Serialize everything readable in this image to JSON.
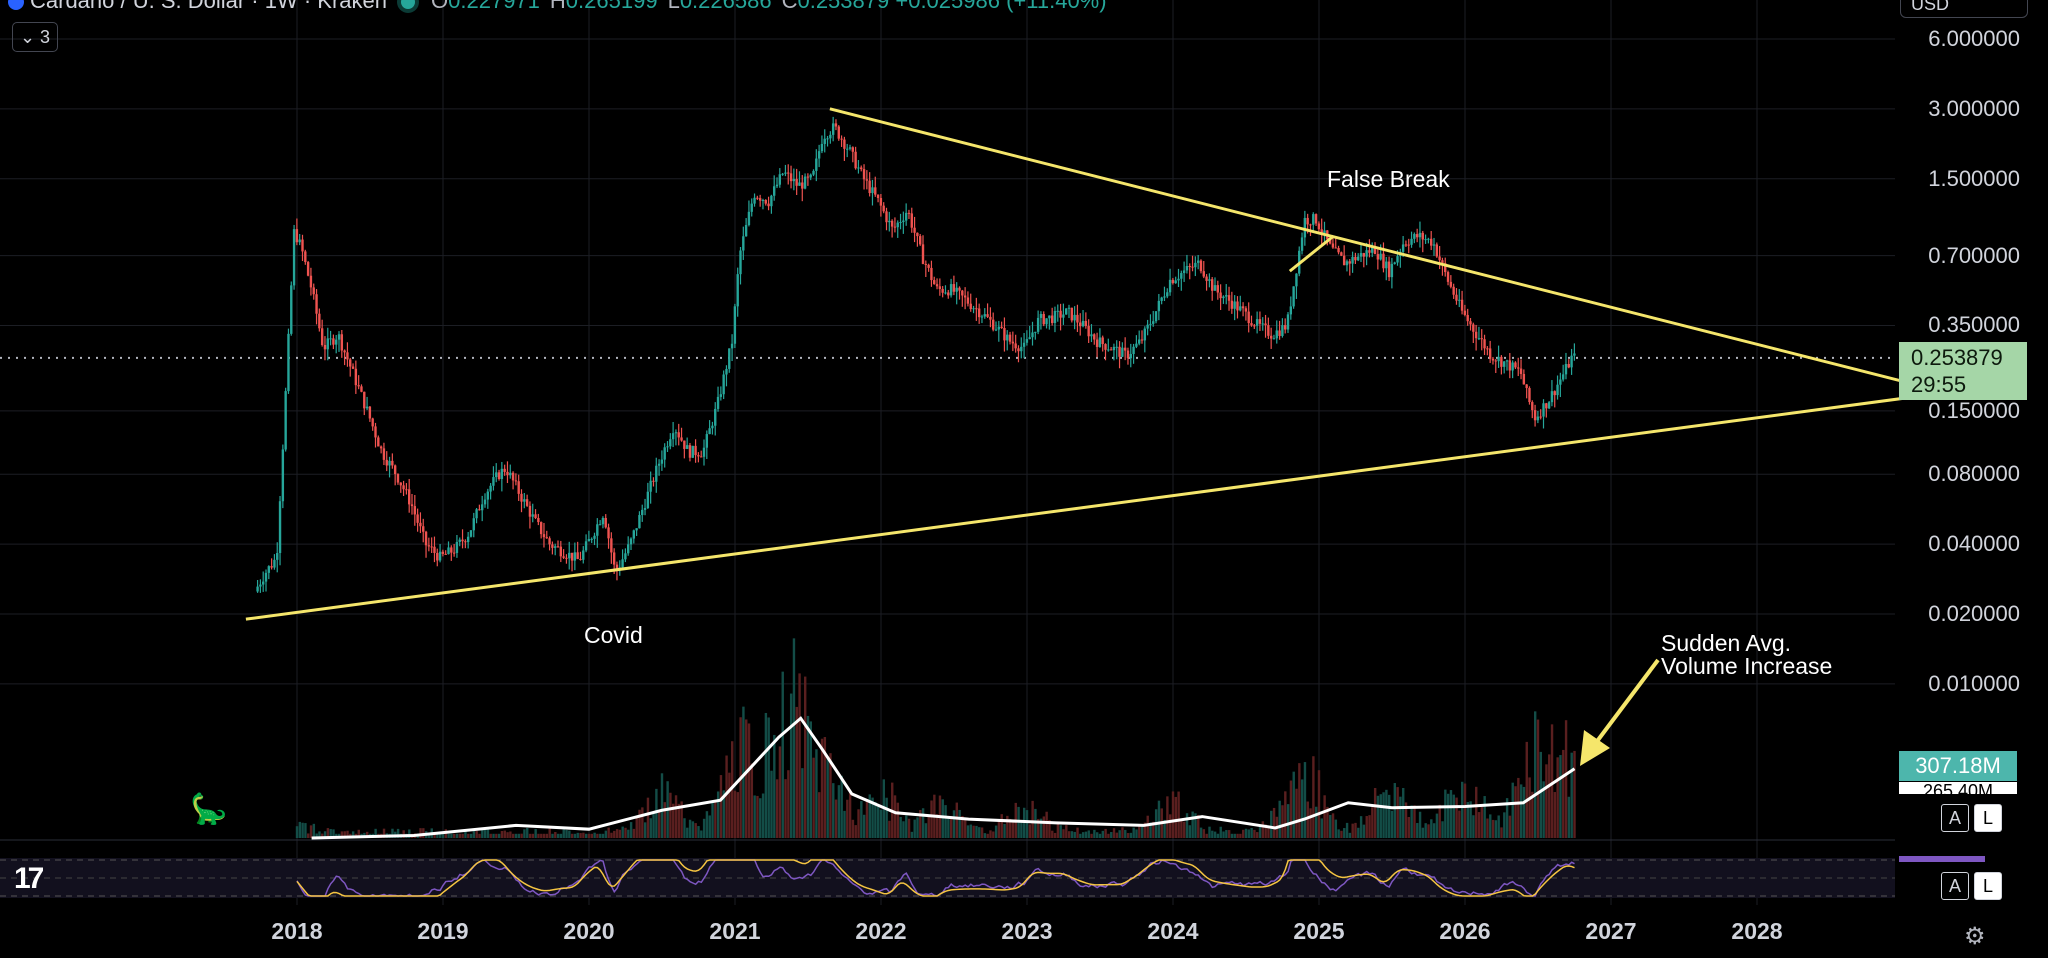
{
  "header": {
    "symbol": "Cardano / U. S. Dollar · 1W · Kraken",
    "o_label": "O",
    "o_value": "0.227971",
    "h_label": "H",
    "h_value": "0.265199",
    "l_label": "L",
    "l_value": "0.226586",
    "c_label": "C",
    "c_value": "0.253879",
    "change": "+0.025986 (+11.40%)",
    "indicator_count": "3",
    "currency": "USD"
  },
  "price_label": {
    "price": "0.253879",
    "countdown": "29:55"
  },
  "volume_label": {
    "value": "307.18M",
    "avg": "265.40M"
  },
  "annotations": {
    "false_break": "False Break",
    "covid": "Covid",
    "volume_note_line1": "Sudden Avg.",
    "volume_note_line2": "Volume Increase"
  },
  "buttons": {
    "auto": "A",
    "log": "L"
  },
  "colors": {
    "up": "#26a69a",
    "down": "#ef5350",
    "trendline": "#f5e66b",
    "volume_ma": "#ffffff",
    "rsi": "#7e57c2",
    "rsi_ma": "#f5c542",
    "price_box": "#a5d6a7",
    "volume_box": "#4db6ac"
  },
  "icons": {
    "logo": "tradingview-logo-icon",
    "settings": "settings-icon",
    "dino": "dino-icon",
    "collapse": "chevron-down-icon"
  },
  "chart_data": {
    "type": "candlestick",
    "title": "Cardano / U. S. Dollar · 1W · Kraken",
    "y_scale": "log",
    "y_ticks": [
      "6.000000",
      "3.000000",
      "1.500000",
      "0.700000",
      "0.350000",
      "0.150000",
      "0.080000",
      "0.040000",
      "0.020000",
      "0.010000"
    ],
    "x_ticks": [
      "2018",
      "2019",
      "2020",
      "2021",
      "2022",
      "2023",
      "2024",
      "2025",
      "2026",
      "2027",
      "2028"
    ],
    "ylim": [
      0.01,
      6.0
    ],
    "xlim": [
      2017.5,
      2029.0
    ],
    "current_price": 0.253879,
    "price_path": [
      [
        2017.73,
        0.025
      ],
      [
        2017.8,
        0.03
      ],
      [
        2017.88,
        0.035
      ],
      [
        2017.93,
        0.13
      ],
      [
        2018.0,
        0.9
      ],
      [
        2018.05,
        0.75
      ],
      [
        2018.12,
        0.5
      ],
      [
        2018.2,
        0.28
      ],
      [
        2018.3,
        0.32
      ],
      [
        2018.4,
        0.22
      ],
      [
        2018.5,
        0.15
      ],
      [
        2018.6,
        0.1
      ],
      [
        2018.7,
        0.08
      ],
      [
        2018.8,
        0.06
      ],
      [
        2018.9,
        0.04
      ],
      [
        2019.0,
        0.035
      ],
      [
        2019.1,
        0.038
      ],
      [
        2019.2,
        0.045
      ],
      [
        2019.3,
        0.065
      ],
      [
        2019.4,
        0.08
      ],
      [
        2019.45,
        0.085
      ],
      [
        2019.55,
        0.065
      ],
      [
        2019.65,
        0.05
      ],
      [
        2019.75,
        0.04
      ],
      [
        2019.85,
        0.037
      ],
      [
        2019.95,
        0.034
      ],
      [
        2020.05,
        0.045
      ],
      [
        2020.12,
        0.055
      ],
      [
        2020.2,
        0.03
      ],
      [
        2020.3,
        0.04
      ],
      [
        2020.4,
        0.06
      ],
      [
        2020.5,
        0.09
      ],
      [
        2020.6,
        0.13
      ],
      [
        2020.7,
        0.1
      ],
      [
        2020.8,
        0.1
      ],
      [
        2020.9,
        0.16
      ],
      [
        2021.0,
        0.3
      ],
      [
        2021.05,
        0.7
      ],
      [
        2021.15,
        1.3
      ],
      [
        2021.25,
        1.2
      ],
      [
        2021.35,
        1.6
      ],
      [
        2021.45,
        1.4
      ],
      [
        2021.55,
        1.5
      ],
      [
        2021.62,
        2.3
      ],
      [
        2021.7,
        2.5
      ],
      [
        2021.8,
        2.0
      ],
      [
        2021.9,
        1.5
      ],
      [
        2022.0,
        1.2
      ],
      [
        2022.1,
        0.9
      ],
      [
        2022.2,
        1.1
      ],
      [
        2022.3,
        0.7
      ],
      [
        2022.4,
        0.5
      ],
      [
        2022.5,
        0.5
      ],
      [
        2022.6,
        0.45
      ],
      [
        2022.7,
        0.4
      ],
      [
        2022.8,
        0.35
      ],
      [
        2022.9,
        0.3
      ],
      [
        2023.0,
        0.28
      ],
      [
        2023.1,
        0.37
      ],
      [
        2023.2,
        0.38
      ],
      [
        2023.3,
        0.4
      ],
      [
        2023.4,
        0.35
      ],
      [
        2023.5,
        0.3
      ],
      [
        2023.6,
        0.28
      ],
      [
        2023.7,
        0.26
      ],
      [
        2023.8,
        0.3
      ],
      [
        2023.9,
        0.4
      ],
      [
        2024.0,
        0.55
      ],
      [
        2024.1,
        0.6
      ],
      [
        2024.2,
        0.65
      ],
      [
        2024.3,
        0.5
      ],
      [
        2024.4,
        0.45
      ],
      [
        2024.5,
        0.4
      ],
      [
        2024.6,
        0.35
      ],
      [
        2024.7,
        0.32
      ],
      [
        2024.8,
        0.35
      ],
      [
        2024.87,
        0.65
      ],
      [
        2024.92,
        1.0
      ],
      [
        2025.0,
        1.0
      ],
      [
        2025.1,
        0.75
      ],
      [
        2025.2,
        0.65
      ],
      [
        2025.3,
        0.7
      ],
      [
        2025.4,
        0.75
      ],
      [
        2025.5,
        0.6
      ],
      [
        2025.6,
        0.8
      ],
      [
        2025.7,
        0.85
      ],
      [
        2025.8,
        0.8
      ],
      [
        2025.9,
        0.55
      ],
      [
        2026.0,
        0.4
      ],
      [
        2026.1,
        0.32
      ],
      [
        2026.2,
        0.26
      ],
      [
        2026.3,
        0.24
      ],
      [
        2026.4,
        0.22
      ],
      [
        2026.45,
        0.17
      ],
      [
        2026.5,
        0.14
      ],
      [
        2026.6,
        0.17
      ],
      [
        2026.7,
        0.22
      ],
      [
        2026.75,
        0.253879
      ]
    ],
    "trendlines": [
      {
        "from": [
          2017.65,
          0.019
        ],
        "to": [
          2029.3,
          0.18
        ]
      },
      {
        "from": [
          2021.65,
          3.0
        ],
        "to": [
          2029.3,
          0.18
        ]
      },
      {
        "from": [
          2024.8,
          0.6
        ],
        "to": [
          2025.1,
          0.85
        ]
      }
    ],
    "volume_peaks": [
      [
        2018.0,
        0.05
      ],
      [
        2020.5,
        0.25
      ],
      [
        2021.05,
        0.55
      ],
      [
        2021.3,
        0.7
      ],
      [
        2021.4,
        0.85
      ],
      [
        2021.6,
        0.5
      ],
      [
        2022.0,
        0.25
      ],
      [
        2022.4,
        0.2
      ],
      [
        2023.0,
        0.15
      ],
      [
        2024.0,
        0.2
      ],
      [
        2024.9,
        0.4
      ],
      [
        2025.5,
        0.3
      ],
      [
        2026.0,
        0.3
      ],
      [
        2026.5,
        0.6
      ],
      [
        2026.7,
        0.55
      ]
    ],
    "volume_ma_path": [
      [
        2018.1,
        0.0
      ],
      [
        2018.8,
        0.02
      ],
      [
        2019.5,
        0.1
      ],
      [
        2020.0,
        0.07
      ],
      [
        2020.5,
        0.22
      ],
      [
        2020.9,
        0.3
      ],
      [
        2021.1,
        0.55
      ],
      [
        2021.3,
        0.8
      ],
      [
        2021.45,
        0.95
      ],
      [
        2021.6,
        0.7
      ],
      [
        2021.8,
        0.35
      ],
      [
        2022.1,
        0.2
      ],
      [
        2022.6,
        0.15
      ],
      [
        2023.2,
        0.12
      ],
      [
        2023.8,
        0.1
      ],
      [
        2024.2,
        0.17
      ],
      [
        2024.7,
        0.08
      ],
      [
        2024.9,
        0.15
      ],
      [
        2025.2,
        0.28
      ],
      [
        2025.5,
        0.24
      ],
      [
        2026.0,
        0.25
      ],
      [
        2026.4,
        0.28
      ],
      [
        2026.75,
        0.55
      ]
    ]
  }
}
